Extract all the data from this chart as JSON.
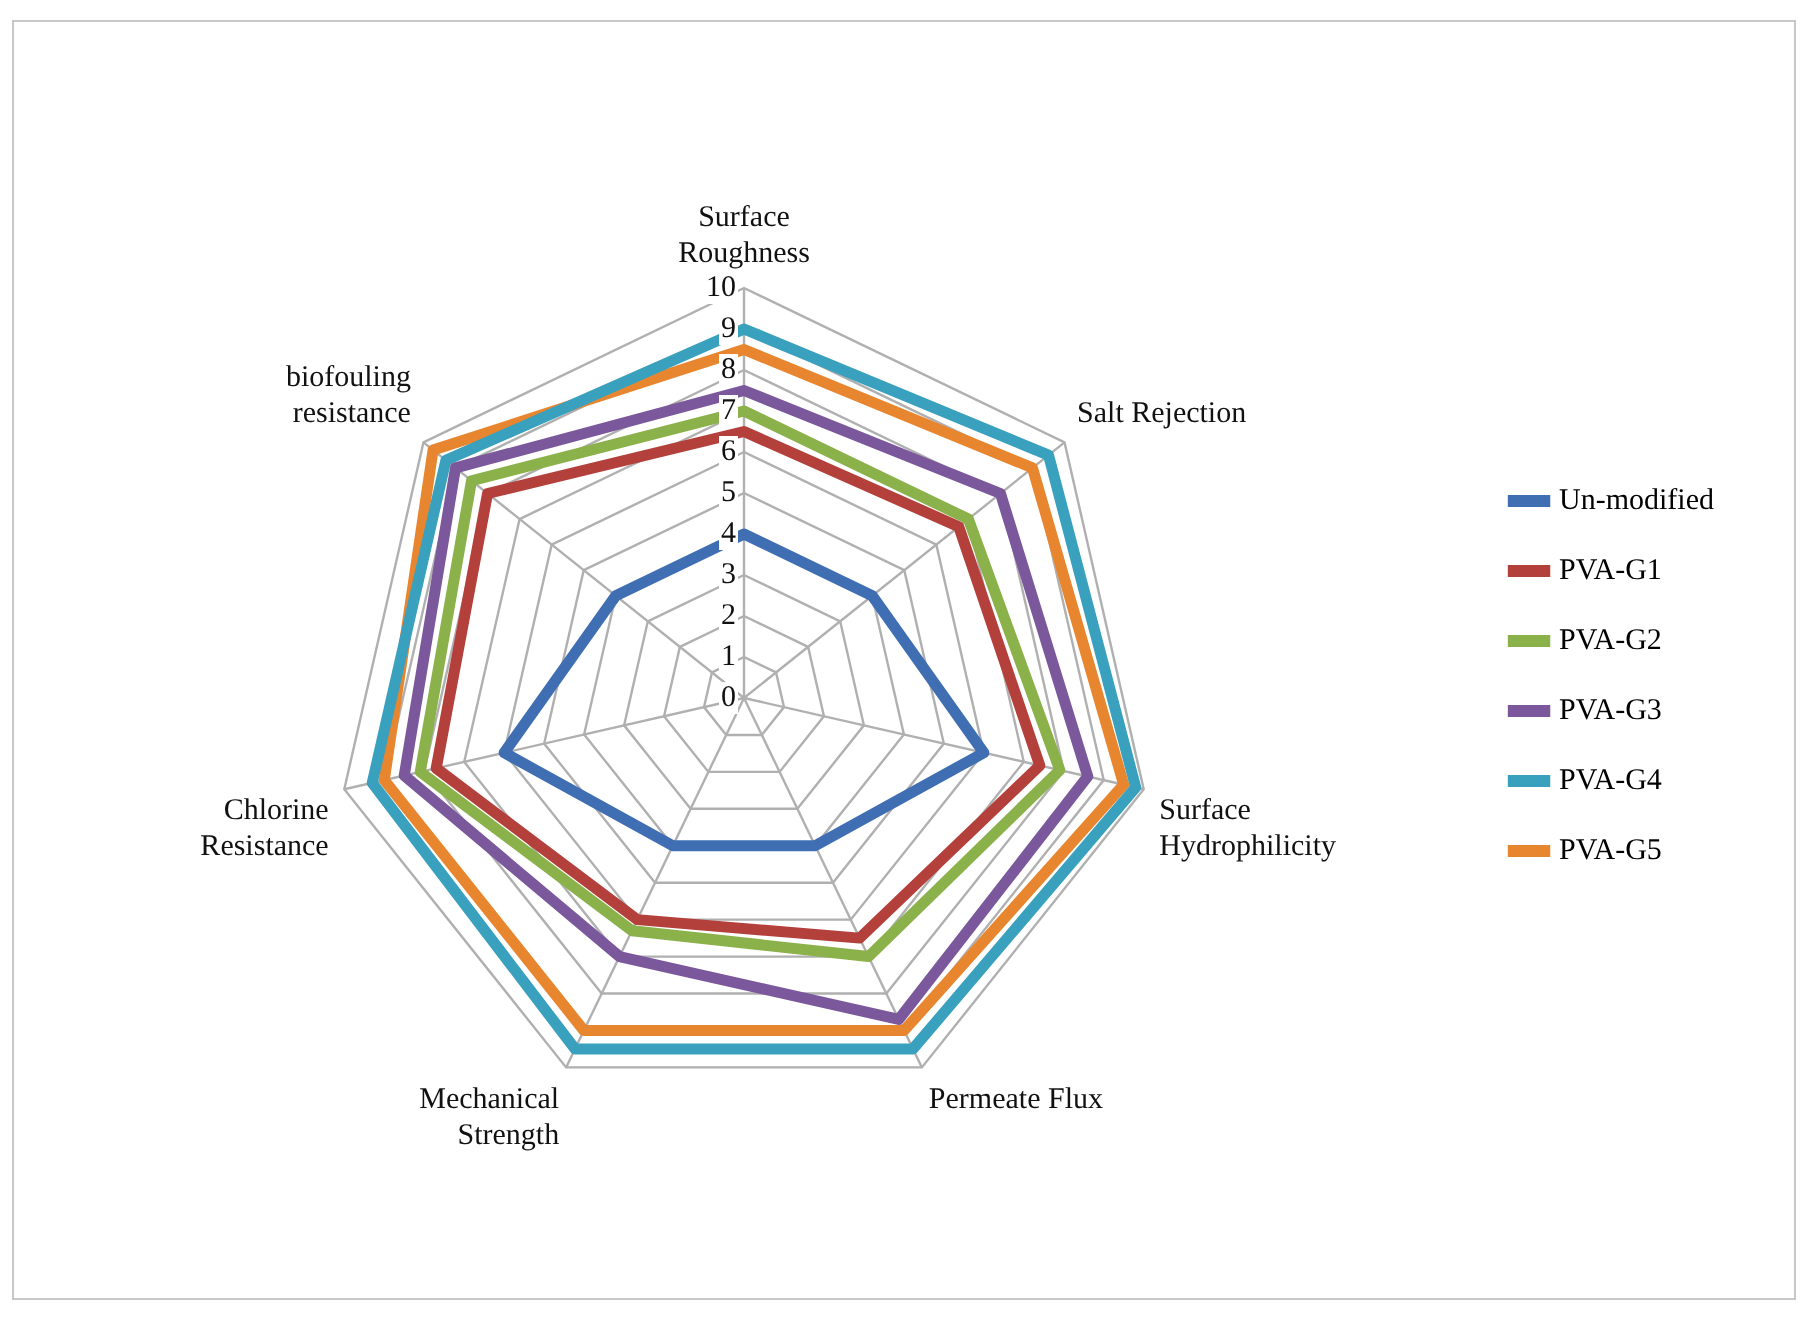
{
  "chart_data": {
    "type": "radar",
    "categories": [
      "Surface Roughness",
      "Salt Rejection",
      "Surface Hydrophilicity",
      "Permeate Flux",
      "Mechanical Strength",
      "Chlorine Resistance",
      "biofouling resistance"
    ],
    "series": [
      {
        "name": "Un-modified",
        "color": "#3f6fb2",
        "values": [
          4,
          4,
          6,
          4,
          4,
          6,
          4
        ]
      },
      {
        "name": "PVA-G1",
        "color": "#b4403c",
        "values": [
          6.5,
          6.7,
          7.4,
          6.5,
          6,
          7.7,
          8
        ]
      },
      {
        "name": "PVA-G2",
        "color": "#8bb14a",
        "values": [
          7,
          7,
          7.9,
          7,
          6.3,
          8.1,
          8.5
        ]
      },
      {
        "name": "PVA-G3",
        "color": "#7b579b",
        "values": [
          7.5,
          8,
          8.6,
          8.7,
          7,
          8.5,
          9
        ]
      },
      {
        "name": "PVA-G4",
        "color": "#39a0bd",
        "values": [
          9,
          9.5,
          9.8,
          9.5,
          9.5,
          9.3,
          9.3
        ]
      },
      {
        "name": "PVA-G5",
        "color": "#e8862f",
        "values": [
          8.5,
          9,
          9.5,
          9,
          9,
          9,
          9.7
        ]
      }
    ],
    "ylim": [
      0,
      10
    ],
    "yticks": [
      0,
      1,
      2,
      3,
      4,
      5,
      6,
      7,
      8,
      9,
      10
    ],
    "grid": true,
    "legend": "right",
    "marker": "none",
    "line_style": "solid"
  }
}
